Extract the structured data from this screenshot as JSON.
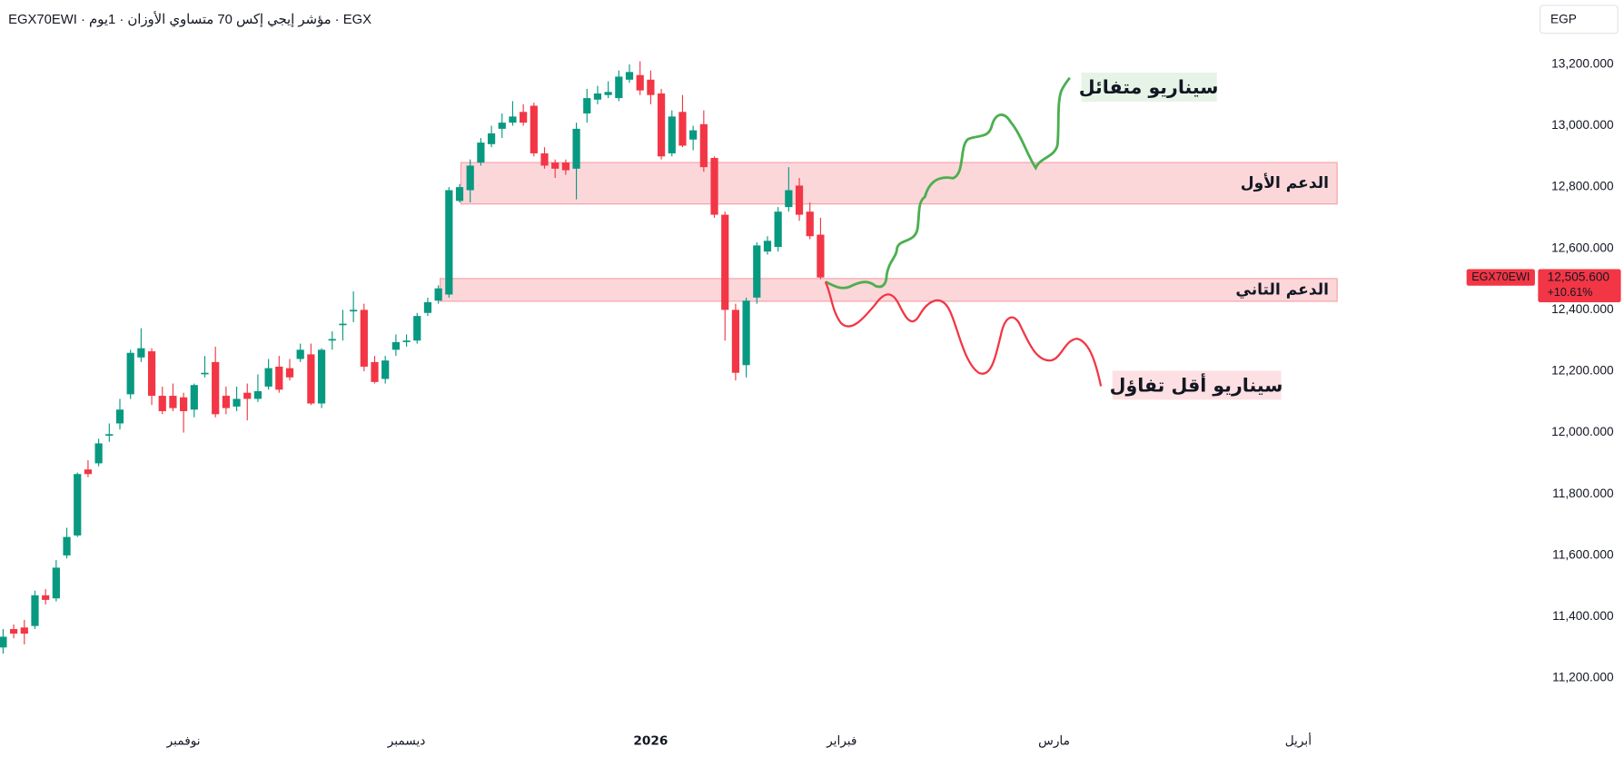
{
  "chart_data": {
    "type": "candlestick",
    "title": "EGX70EWI · مؤشر إيجي إكس 70 متساوي الأوزان · 1يوم · EGX",
    "currency": "EGP",
    "up_color": "#089981",
    "down_color": "#f23645",
    "categories": [
      null,
      null,
      null,
      null,
      null,
      null,
      null,
      null,
      null,
      null,
      null,
      null,
      null,
      null,
      null,
      null,
      null,
      "نوفمبر",
      null,
      null,
      null,
      null,
      null,
      null,
      null,
      null,
      null,
      null,
      null,
      null,
      null,
      null,
      null,
      null,
      null,
      null,
      null,
      null,
      "ديسمبر",
      null,
      null,
      null,
      null,
      null,
      null,
      null,
      null,
      null,
      null,
      null,
      null,
      null,
      null,
      null,
      null,
      null,
      null,
      null,
      null,
      null,
      null,
      "2026",
      null,
      null,
      null,
      null,
      null,
      null,
      null,
      null,
      null,
      null,
      null,
      null,
      null,
      null,
      null,
      null,
      null,
      "فبراير",
      null,
      null,
      null,
      null,
      null,
      null,
      null,
      null,
      null,
      null,
      null,
      null,
      null,
      null,
      null,
      null,
      null,
      null,
      null,
      "مارس",
      null,
      null,
      null,
      null,
      null,
      null,
      null,
      null,
      null,
      null,
      null,
      null,
      null,
      null,
      null,
      null,
      null,
      null,
      null,
      null,
      null,
      null,
      "أبريل",
      null,
      null,
      null
    ],
    "open": [
      11300,
      11360,
      11365,
      11370,
      11470,
      11460,
      11600,
      11665,
      11880,
      11900,
      11990,
      12030,
      12125,
      12245,
      12265,
      12120,
      12120,
      12115,
      12075,
      12190,
      12230,
      12120,
      12085,
      12130,
      12110,
      12150,
      12215,
      12210,
      12240,
      12255,
      12095,
      12300,
      12350,
      12395,
      12400,
      12230,
      12175,
      12270,
      12295,
      12300,
      12390,
      12430,
      12450,
      12755,
      12790,
      12880,
      12940,
      12990,
      13010,
      13045,
      13065,
      12910,
      12880,
      12880,
      12860,
      13040,
      13085,
      13100,
      13090,
      13150,
      13165,
      13150,
      13105,
      12910,
      13045,
      12955,
      13005,
      12895,
      12710,
      12400,
      12220,
      12440,
      12590,
      12605,
      12735,
      12805,
      12720,
      12645,
      null,
      null,
      null,
      null,
      null,
      null,
      null,
      null,
      null,
      null,
      null,
      null,
      null,
      null,
      null,
      null,
      null,
      null,
      null,
      null,
      null,
      null,
      null,
      null,
      null,
      null,
      null,
      null,
      null,
      null,
      null,
      null,
      null,
      null,
      null,
      null,
      null,
      null,
      null,
      null,
      null,
      null,
      null,
      null,
      null,
      null,
      null,
      null
    ],
    "high": [
      11360,
      11375,
      11390,
      11485,
      11490,
      11585,
      11690,
      11870,
      11910,
      11980,
      12030,
      12110,
      12270,
      12340,
      12275,
      12150,
      12160,
      12130,
      12160,
      12250,
      12280,
      12150,
      12150,
      12160,
      12190,
      12240,
      12250,
      12240,
      12290,
      12290,
      12275,
      12330,
      12400,
      12460,
      12420,
      12250,
      12250,
      12320,
      12320,
      12390,
      12440,
      12480,
      12800,
      12810,
      12890,
      12960,
      13000,
      13040,
      13080,
      13070,
      13075,
      12930,
      12890,
      12890,
      13010,
      13120,
      13130,
      13145,
      13180,
      13200,
      13210,
      13180,
      13120,
      13050,
      13100,
      13000,
      13050,
      12900,
      12720,
      12420,
      12440,
      12620,
      12640,
      12735,
      12865,
      12830,
      12750,
      12700,
      null,
      null,
      null,
      null,
      null,
      null,
      null,
      null,
      null,
      null,
      null,
      null,
      null,
      null,
      null,
      null,
      null,
      null,
      null,
      null,
      null,
      null,
      null,
      null,
      null,
      null,
      null,
      null,
      null,
      null,
      null,
      null,
      null,
      null,
      null,
      null,
      null,
      null,
      null,
      null,
      null,
      null,
      null,
      null,
      null,
      null,
      null,
      null
    ],
    "low": [
      11280,
      11330,
      11310,
      11360,
      11440,
      11450,
      11590,
      11660,
      11855,
      11890,
      11970,
      12010,
      12110,
      12230,
      12090,
      12060,
      12070,
      12000,
      12050,
      12180,
      12050,
      12060,
      12070,
      12040,
      12100,
      12140,
      12130,
      12170,
      12230,
      12090,
      12080,
      12270,
      12300,
      12360,
      12200,
      12160,
      12160,
      12250,
      12280,
      12290,
      12380,
      12420,
      12440,
      12750,
      12750,
      12870,
      12930,
      12960,
      13000,
      13000,
      12900,
      12860,
      12830,
      12840,
      12760,
      13010,
      13070,
      13090,
      13080,
      13140,
      13100,
      13070,
      12890,
      12900,
      12930,
      12920,
      12850,
      12700,
      12300,
      12170,
      12180,
      12420,
      12580,
      12590,
      12720,
      12690,
      12630,
      12500,
      null,
      null,
      null,
      null,
      null,
      null,
      null,
      null,
      null,
      null,
      null,
      null,
      null,
      null,
      null,
      null,
      null,
      null,
      null,
      null,
      null,
      null,
      null,
      null,
      null,
      null,
      null,
      null,
      null,
      null,
      null,
      null,
      null,
      null,
      null,
      null,
      null,
      null,
      null,
      null,
      null,
      null,
      null,
      null,
      null,
      null,
      null,
      null
    ],
    "close": [
      11335,
      11345,
      11345,
      11470,
      11455,
      11560,
      11660,
      11865,
      11865,
      11965,
      11995,
      12075,
      12260,
      12275,
      12120,
      12070,
      12080,
      12070,
      12155,
      12195,
      12060,
      12080,
      12110,
      12110,
      12135,
      12210,
      12140,
      12180,
      12270,
      12095,
      12270,
      12305,
      12355,
      12400,
      12215,
      12165,
      12235,
      12295,
      12300,
      12380,
      12425,
      12470,
      12790,
      12800,
      12870,
      12945,
      12975,
      13010,
      13030,
      13010,
      12910,
      12870,
      12860,
      12855,
      12990,
      13090,
      13105,
      13110,
      13160,
      13175,
      13115,
      13100,
      12900,
      13030,
      12935,
      12985,
      12865,
      12710,
      12400,
      12195,
      12430,
      12610,
      12625,
      12720,
      12790,
      12710,
      12640,
      12505.6,
      null,
      null,
      null,
      null,
      null,
      null,
      null,
      null,
      null,
      null,
      null,
      null,
      null,
      null,
      null,
      null,
      null,
      null,
      null,
      null,
      null,
      null,
      null,
      null,
      null,
      null,
      null,
      null,
      null,
      null,
      null,
      null,
      null,
      null,
      null,
      null,
      null,
      null,
      null,
      null,
      null,
      null,
      null,
      null,
      null,
      null,
      null,
      null
    ],
    "ylim": [
      11082,
      13409
    ],
    "yticks": [
      {
        "value": 11200,
        "label": "11,200.000"
      },
      {
        "value": 11400,
        "label": "11,400.000"
      },
      {
        "value": 11600,
        "label": "11,600.000"
      },
      {
        "value": 11800,
        "label": "11,800.000"
      },
      {
        "value": 12000,
        "label": "12,000.000"
      },
      {
        "value": 12200,
        "label": "12,200.000"
      },
      {
        "value": 12400,
        "label": "12,400.000"
      },
      {
        "value": 12600,
        "label": "12,600.000"
      },
      {
        "value": 12800,
        "label": "12,800.000"
      },
      {
        "value": 13000,
        "label": "13,000.000"
      },
      {
        "value": 13200,
        "label": "13,200.000"
      }
    ],
    "last_price": {
      "name": "EGX70EWI",
      "value": 12505.6,
      "label": "12,505.600",
      "change": "+10.61%"
    },
    "zones": [
      {
        "label": "الدعم الأول",
        "from": 12745,
        "to": 12880
      },
      {
        "label": "الدعم التاني",
        "from": 12428,
        "to": 12502
      }
    ],
    "scenarios": [
      {
        "label": "سيناريو متفائل",
        "color": "#4caf50"
      },
      {
        "label": "سيناريو أقل تفاؤل",
        "color": "#f23645"
      }
    ]
  }
}
